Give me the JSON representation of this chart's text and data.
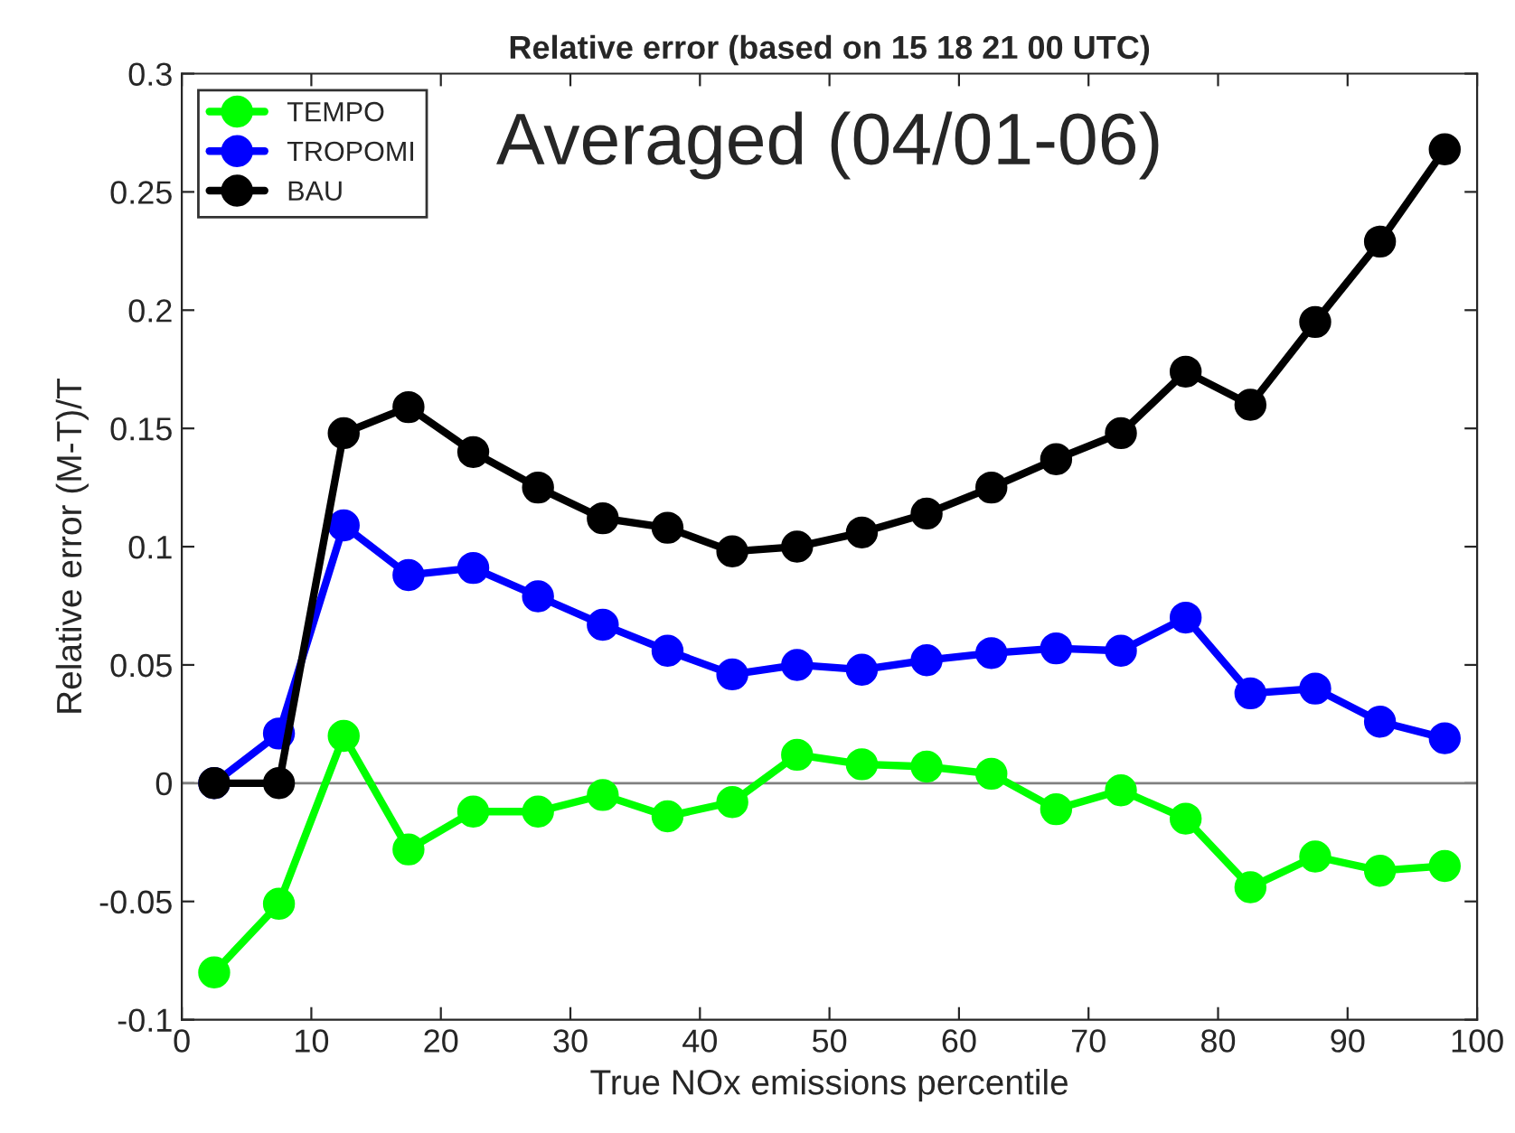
{
  "chart_data": {
    "type": "line",
    "title": "Relative error (based on 15 18 21 00 UTC)",
    "xlabel": "True NOx emissions percentile",
    "ylabel": "Relative error (M-T)/T",
    "annotations": [
      "Averaged (04/01-06)"
    ],
    "x": [
      2.5,
      7.5,
      12.5,
      17.5,
      22.5,
      27.5,
      32.5,
      37.5,
      42.5,
      47.5,
      52.5,
      57.5,
      62.5,
      67.5,
      72.5,
      77.5,
      82.5,
      87.5,
      92.5,
      97.5
    ],
    "series": [
      {
        "name": "TEMPO",
        "color": "#00ff00",
        "values": [
          -0.08,
          -0.051,
          0.02,
          -0.028,
          -0.012,
          -0.012,
          -0.005,
          -0.014,
          -0.008,
          0.012,
          0.008,
          0.007,
          0.004,
          -0.011,
          -0.003,
          -0.015,
          -0.044,
          -0.031,
          -0.037,
          -0.035
        ]
      },
      {
        "name": "TROPOMI",
        "color": "#0000ff",
        "values": [
          0,
          0.021,
          0.109,
          0.088,
          0.091,
          0.079,
          0.067,
          0.056,
          0.046,
          0.05,
          0.048,
          0.052,
          0.055,
          0.057,
          0.056,
          0.07,
          0.038,
          0.04,
          0.026,
          0.019
        ]
      },
      {
        "name": "BAU",
        "color": "#000000",
        "values": [
          0,
          0,
          0.148,
          0.159,
          0.14,
          0.125,
          0.112,
          0.108,
          0.098,
          0.1,
          0.106,
          0.114,
          0.125,
          0.137,
          0.148,
          0.174,
          0.16,
          0.195,
          0.229,
          0.268
        ]
      }
    ],
    "xlim": [
      0,
      100
    ],
    "xticks": [
      0,
      10,
      20,
      30,
      40,
      50,
      60,
      70,
      80,
      90,
      100
    ],
    "ylim": [
      -0.1,
      0.3
    ],
    "yticks": [
      -0.1,
      -0.05,
      0,
      0.05,
      0.1,
      0.15,
      0.2,
      0.25,
      0.3
    ],
    "ref_lines": [
      {
        "axis": "y",
        "value": 0,
        "color": "#808080"
      }
    ],
    "marker": "circle",
    "line_style": "solid",
    "legend": "top left",
    "grid": false
  }
}
